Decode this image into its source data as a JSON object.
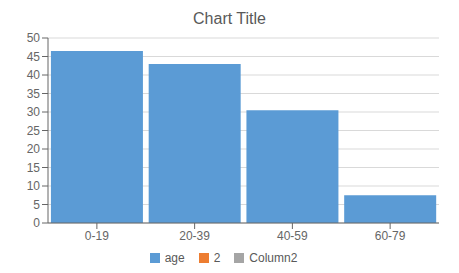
{
  "chart_data": {
    "type": "bar",
    "title": "Chart Title",
    "categories": [
      "0-19",
      "20-39",
      "40-59",
      "60-79"
    ],
    "series": [
      {
        "name": "age",
        "color": "#5B9BD5",
        "values": [
          46.5,
          43,
          30.5,
          7.5
        ]
      },
      {
        "name": "2",
        "color": "#ED7D31",
        "values": [
          null,
          null,
          null,
          null
        ]
      },
      {
        "name": "Column2",
        "color": "#A5A5A5",
        "values": [
          null,
          null,
          null,
          null
        ]
      }
    ],
    "ylim": [
      0,
      50
    ],
    "yticks": [
      0,
      5,
      10,
      15,
      20,
      25,
      30,
      35,
      40,
      45,
      50
    ],
    "grid": true,
    "legend": "bottom"
  }
}
